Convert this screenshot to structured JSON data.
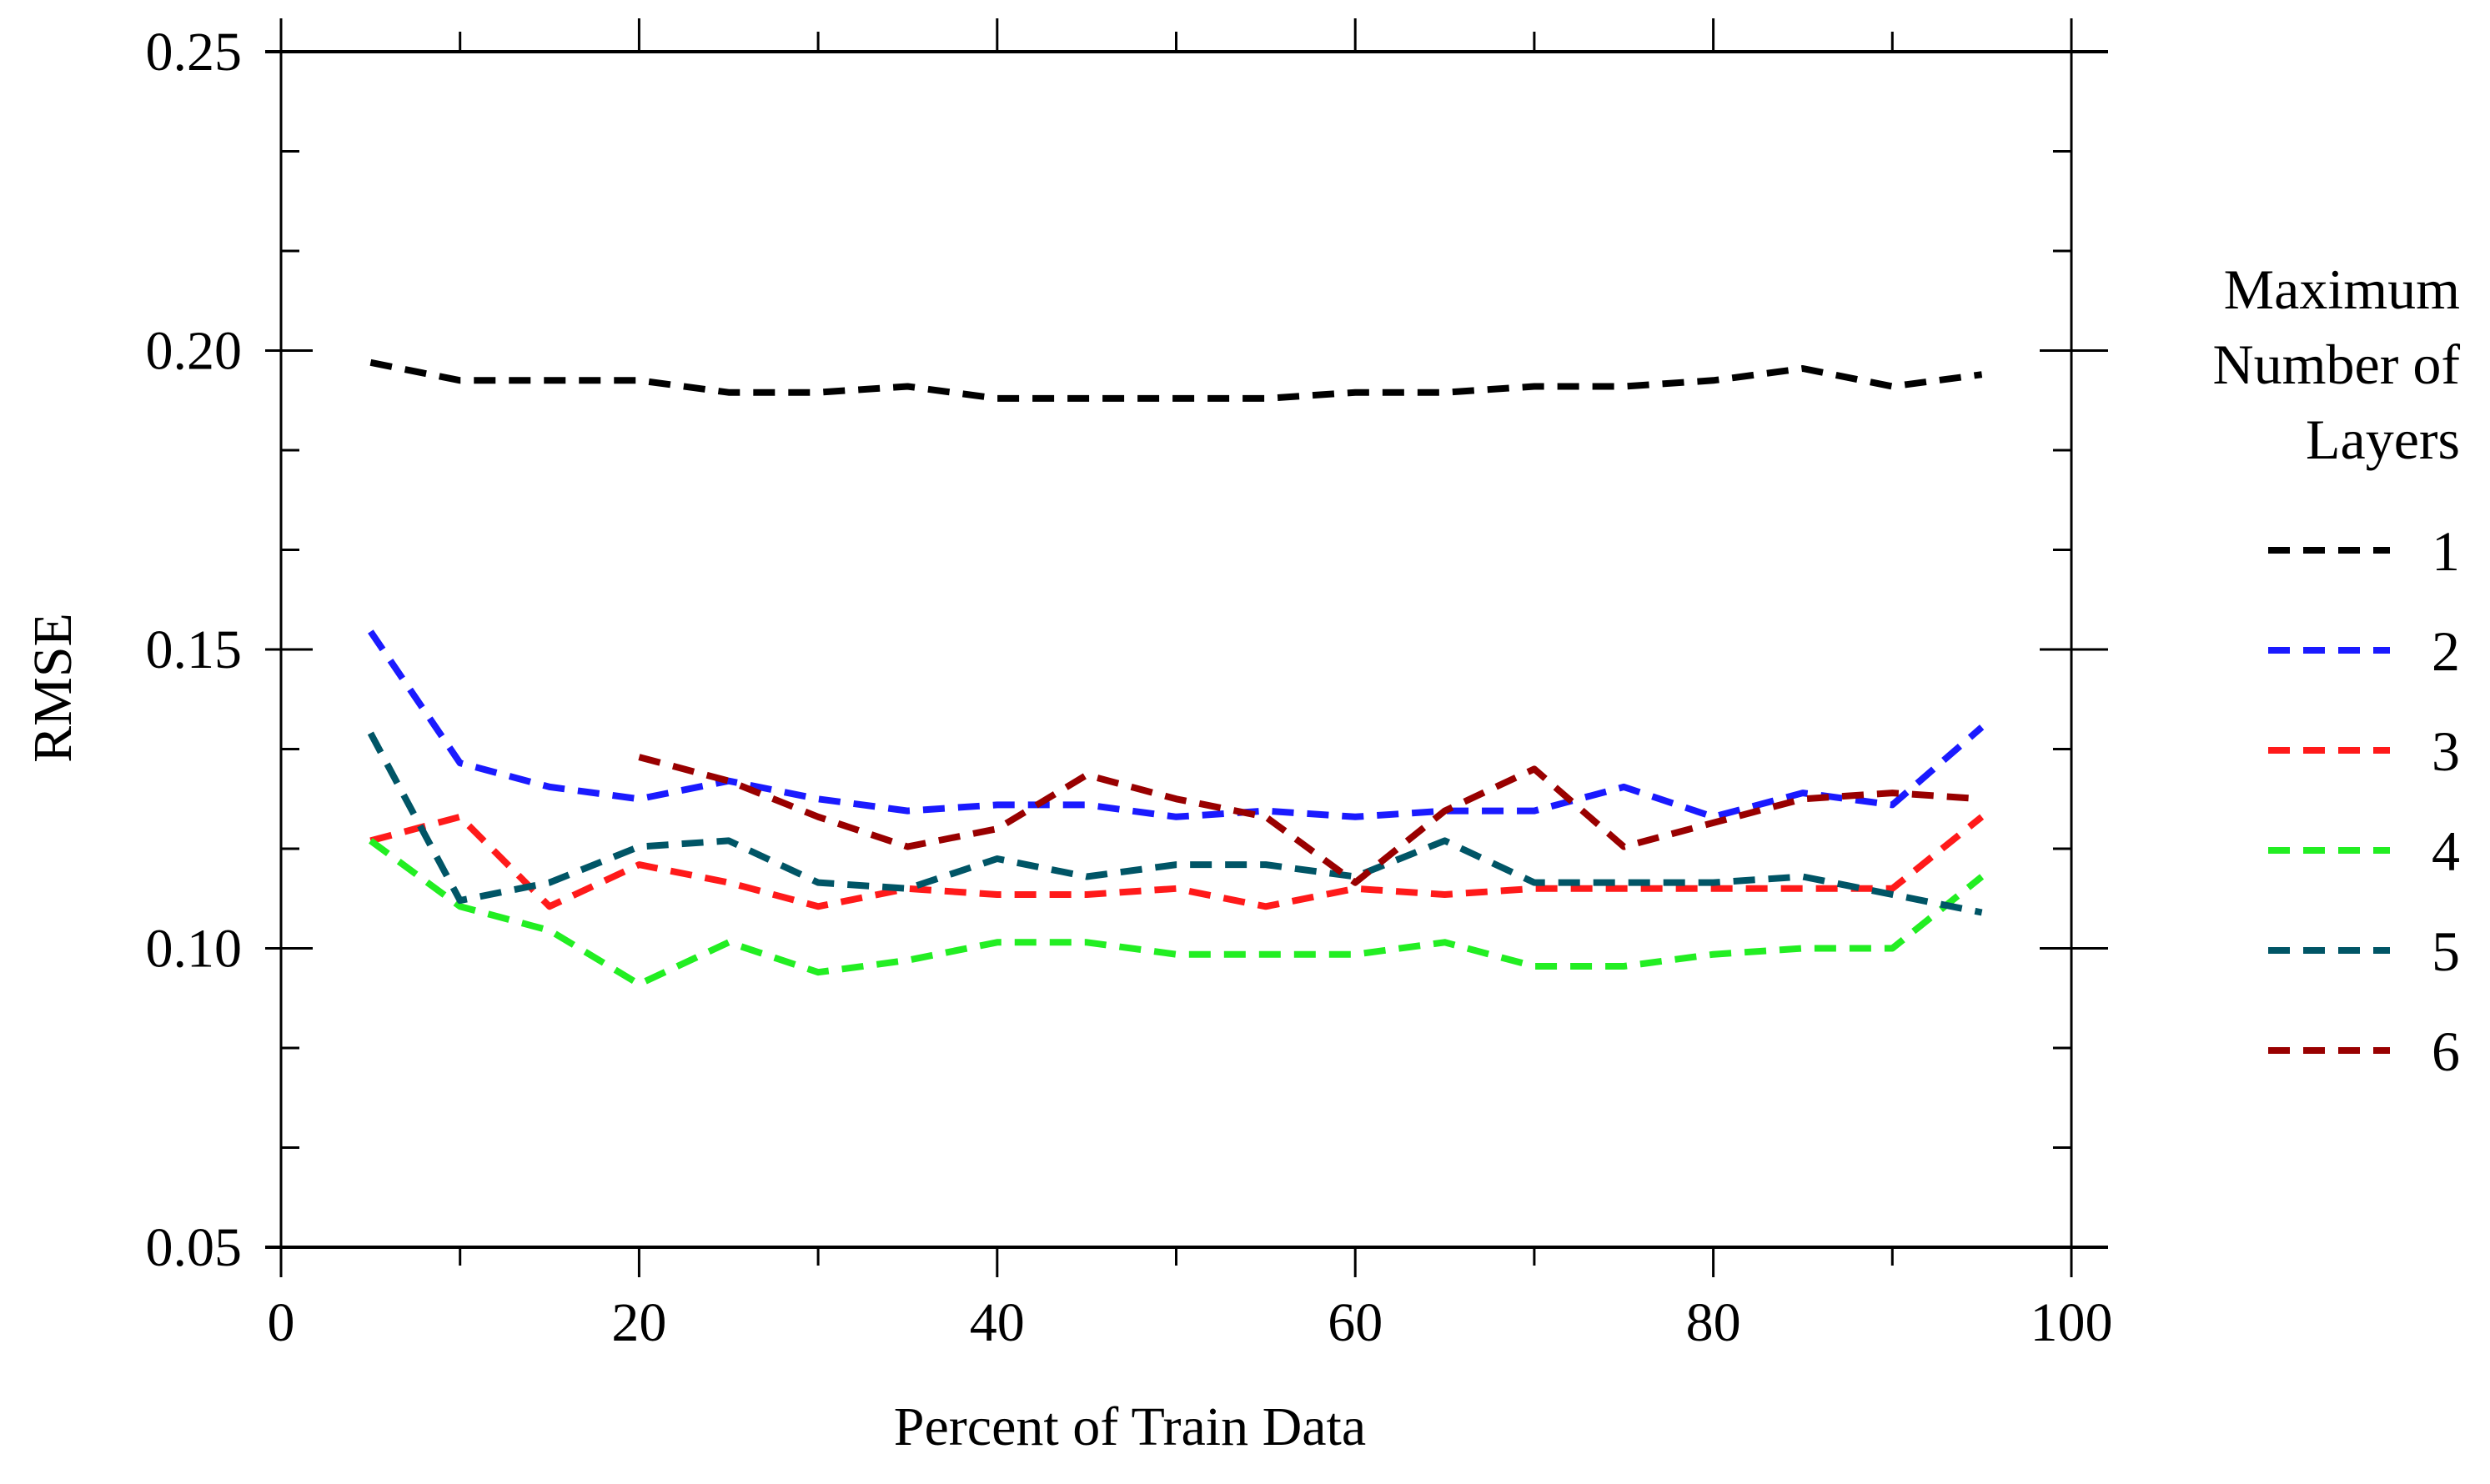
{
  "chart_data": {
    "type": "line",
    "title": "",
    "xlabel": "Percent of Train Data",
    "ylabel": "RMSE",
    "xlim": [
      0,
      100
    ],
    "ylim": [
      0.05,
      0.25
    ],
    "x_ticks": [
      0,
      20,
      40,
      60,
      80,
      100
    ],
    "x_tick_labels": [
      "0",
      "20",
      "40",
      "60",
      "80",
      "100"
    ],
    "y_ticks": [
      0.05,
      0.1,
      0.15,
      0.2,
      0.25
    ],
    "y_tick_labels": [
      "0.05",
      "0.10",
      "0.15",
      "0.20",
      "0.25"
    ],
    "grid": false,
    "legend": {
      "title_lines": [
        "Maximum",
        "Number of",
        "Layers"
      ],
      "placement": "right"
    },
    "series": [
      {
        "name": "1",
        "color": "#000000",
        "x": [
          5,
          10,
          15,
          20,
          25,
          30,
          35,
          40,
          45,
          50,
          55,
          60,
          65,
          70,
          75,
          80,
          85,
          90,
          95
        ],
        "y": [
          0.198,
          0.195,
          0.195,
          0.195,
          0.193,
          0.193,
          0.194,
          0.192,
          0.192,
          0.192,
          0.192,
          0.193,
          0.193,
          0.194,
          0.194,
          0.195,
          0.197,
          0.194,
          0.196
        ]
      },
      {
        "name": "2",
        "color": "#1a1aff",
        "x": [
          5,
          10,
          15,
          20,
          25,
          30,
          35,
          40,
          45,
          50,
          55,
          60,
          65,
          70,
          75,
          80,
          85,
          90,
          95
        ],
        "y": [
          0.153,
          0.131,
          0.127,
          0.125,
          0.128,
          0.125,
          0.123,
          0.124,
          0.124,
          0.122,
          0.123,
          0.122,
          0.123,
          0.123,
          0.127,
          0.122,
          0.126,
          0.124,
          0.137
        ]
      },
      {
        "name": "3",
        "color": "#ff1a1a",
        "x": [
          5,
          10,
          15,
          20,
          25,
          30,
          35,
          40,
          45,
          50,
          55,
          60,
          65,
          70,
          75,
          80,
          85,
          90,
          95
        ],
        "y": [
          0.118,
          0.122,
          0.107,
          0.114,
          0.111,
          0.107,
          0.11,
          0.109,
          0.109,
          0.11,
          0.107,
          0.11,
          0.109,
          0.11,
          0.11,
          0.11,
          0.11,
          0.11,
          0.122
        ]
      },
      {
        "name": "4",
        "color": "#22ee22",
        "x": [
          5,
          10,
          15,
          20,
          25,
          30,
          35,
          40,
          45,
          50,
          55,
          60,
          65,
          70,
          75,
          80,
          85,
          90,
          95
        ],
        "y": [
          0.118,
          0.107,
          0.103,
          0.094,
          0.101,
          0.096,
          0.098,
          0.101,
          0.101,
          0.099,
          0.099,
          0.099,
          0.101,
          0.097,
          0.097,
          0.099,
          0.1,
          0.1,
          0.112
        ]
      },
      {
        "name": "5",
        "color": "#005566",
        "x": [
          5,
          10,
          15,
          20,
          25,
          30,
          35,
          40,
          45,
          50,
          55,
          60,
          65,
          70,
          75,
          80,
          85,
          90,
          95
        ],
        "y": [
          0.136,
          0.108,
          0.111,
          0.117,
          0.118,
          0.111,
          0.11,
          0.115,
          0.112,
          0.114,
          0.114,
          0.112,
          0.118,
          0.111,
          0.111,
          0.111,
          0.112,
          0.109,
          0.106
        ]
      },
      {
        "name": "6",
        "color": "#990000",
        "x": [
          20,
          25,
          30,
          35,
          40,
          45,
          50,
          55,
          60,
          65,
          70,
          75,
          80,
          85,
          90,
          95
        ],
        "y": [
          0.132,
          0.128,
          0.122,
          0.117,
          0.12,
          0.129,
          0.125,
          0.122,
          0.111,
          0.123,
          0.13,
          0.117,
          0.121,
          0.125,
          0.126,
          0.125
        ]
      }
    ]
  }
}
